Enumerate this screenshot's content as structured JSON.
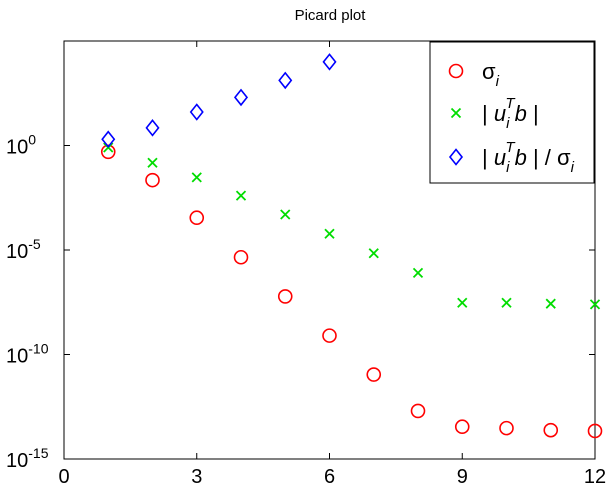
{
  "chart_data": {
    "type": "scatter",
    "title": "Picard plot",
    "xlabel": "",
    "ylabel": "",
    "xlim": [
      0,
      12
    ],
    "ylim": [
      1e-15,
      100000.0
    ],
    "yscale": "log",
    "grid": false,
    "legend_position": "top-right",
    "x_ticks": [
      0,
      3,
      6,
      9,
      12
    ],
    "x_tick_labels": [
      "0",
      "3",
      "6",
      "9",
      "12"
    ],
    "y_ticks": [
      1e-15,
      1e-10,
      1e-05,
      1
    ],
    "y_tick_labels": [
      {
        "base": "10",
        "exp": "-15"
      },
      {
        "base": "10",
        "exp": "-10"
      },
      {
        "base": "10",
        "exp": "-5"
      },
      {
        "base": "10",
        "exp": "0"
      }
    ],
    "series": [
      {
        "name": "σ_i",
        "legend_parts": [
          {
            "t": "σ"
          },
          {
            "t": "i",
            "sub": true,
            "italic": true
          }
        ],
        "marker": "circle",
        "color": "#ff0000",
        "x": [
          1,
          2,
          3,
          4,
          5,
          6,
          7,
          8,
          9,
          10,
          11,
          12
        ],
        "y": [
          0.5,
          0.022,
          0.00035,
          4.5e-06,
          6e-08,
          8e-10,
          1.1e-11,
          2e-13,
          3.5e-14,
          3e-14,
          2.4e-14,
          2.2e-14
        ]
      },
      {
        "name": "| u_i^T b |",
        "legend_parts": [
          {
            "t": "| "
          },
          {
            "t": "u",
            "italic": true
          },
          {
            "t": "i",
            "sub": true,
            "italic": true
          },
          {
            "t": "T",
            "sup": true,
            "italic": true
          },
          {
            "t": "b",
            "italic": true
          },
          {
            "t": " |"
          }
        ],
        "marker": "x",
        "color": "#00dd00",
        "x": [
          1,
          2,
          3,
          4,
          5,
          6,
          7,
          8,
          9,
          10,
          11,
          12
        ],
        "y": [
          0.8,
          0.15,
          0.03,
          0.004,
          0.0005,
          6e-05,
          7e-06,
          8e-07,
          3e-08,
          3e-08,
          2.7e-08,
          2.5e-08
        ]
      },
      {
        "name": "| u_i^T b | / σ_i",
        "legend_parts": [
          {
            "t": "| "
          },
          {
            "t": "u",
            "italic": true
          },
          {
            "t": "i",
            "sub": true,
            "italic": true
          },
          {
            "t": "T",
            "sup": true,
            "italic": true
          },
          {
            "t": "b",
            "italic": true
          },
          {
            "t": " | / σ"
          },
          {
            "t": "i",
            "sub": true,
            "italic": true
          }
        ],
        "marker": "diamond",
        "color": "#0000ff",
        "x": [
          1,
          2,
          3,
          4,
          5,
          6
        ],
        "y": [
          2.0,
          7.0,
          40,
          200,
          1300,
          10000
        ]
      }
    ]
  }
}
